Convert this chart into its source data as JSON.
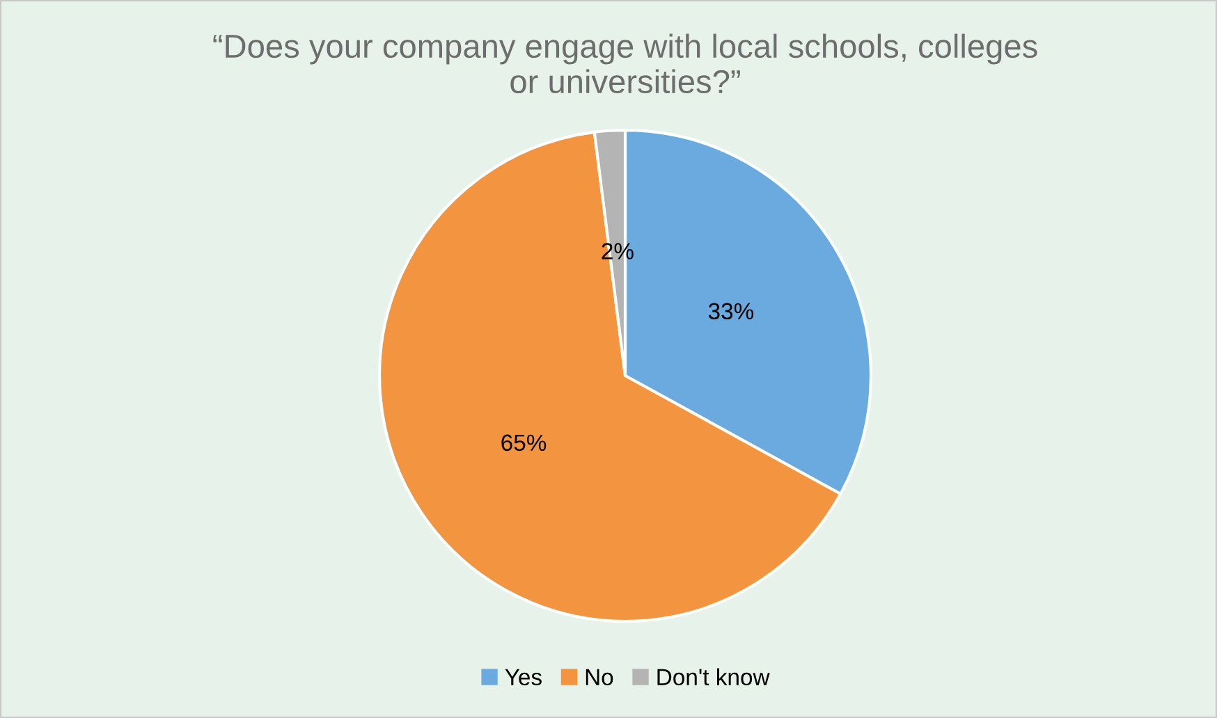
{
  "chart_data": {
    "type": "pie",
    "title": "“Does your company engage with local schools, colleges\nor universities?”",
    "categories": [
      "Yes",
      "No",
      "Don't know"
    ],
    "values": [
      33,
      65,
      2
    ],
    "colors": [
      "#6aaade",
      "#f39440",
      "#b4b4b4"
    ],
    "value_labels": [
      "33%",
      "65%",
      "2%"
    ],
    "legend": "bottom"
  }
}
